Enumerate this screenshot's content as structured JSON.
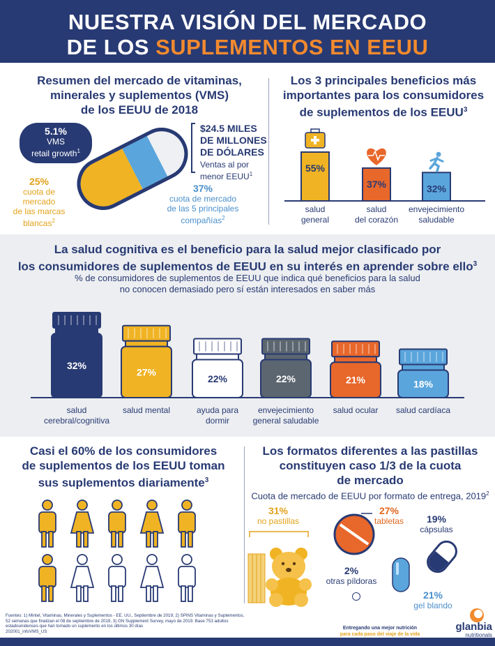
{
  "header": {
    "title_line1": "NUESTRA VISIÓN DEL MERCADO",
    "title_line2_prefix": "DE LOS ",
    "title_line2_accent": "SUPLEMENTOS EN EEUU"
  },
  "vms": {
    "title_l1": "Resumen del mercado de vitaminas,",
    "title_l2": "minerales y suplementos (VMS)",
    "title_l3": "de los EEUU de 2018",
    "growth_value": "5.1%",
    "growth_l1": "VMS",
    "growth_l2": "retail growth",
    "growth_sup": "1",
    "total_l1": "$24.5 MILES",
    "total_l2": "DE MILLONES",
    "total_l3": "DE DÓLARES",
    "total_desc_l1": "Ventas al por",
    "total_desc_l2": "menor EEUU",
    "total_sup": "1",
    "private_value": "25%",
    "private_l1": "cuota de",
    "private_l2": "mercado",
    "private_l3": "de las marcas",
    "private_l4": "blancas",
    "private_sup": "2",
    "top5_value": "37%",
    "top5_l1": "cuota de mercado",
    "top5_l2": "de las 5 principales",
    "top5_l3": "compañías",
    "top5_sup": "2"
  },
  "benefits": {
    "title_l1": "Los 3 principales beneficios más",
    "title_l2": "importantes para los consumidores",
    "title_l3": "de suplementos de los EEUU",
    "title_sup": "3",
    "items": [
      {
        "value": "55%",
        "label_l1": "salud",
        "label_l2": "general",
        "icon": "first-aid-kit-icon",
        "color": "#f0b323"
      },
      {
        "value": "37%",
        "label_l1": "salud",
        "label_l2": "del corazón",
        "icon": "heart-icon",
        "color": "#e8672b"
      },
      {
        "value": "32%",
        "label_l1": "envejecimiento",
        "label_l2": "saludable",
        "icon": "runner-icon",
        "color": "#5aa5dc"
      }
    ]
  },
  "cognitive": {
    "title_l1": "La salud cognitiva es el beneficio para la salud mejor clasificado por",
    "title_l2": "los consumidores de suplementos de EEUU en su interés en aprender sobre ello",
    "title_sup": "3",
    "sub_l1": "% de consumidores de suplementos de EEUU que indica qué beneficios para la salud",
    "sub_l2": "no conocen demasiado pero sí están interesados en saber más",
    "bottles": [
      {
        "value": "32%",
        "label_l1": "salud",
        "label_l2": "cerebral/cognitiva",
        "color": "#283a73",
        "cap": "#283a73"
      },
      {
        "value": "27%",
        "label_l1": "salud mental",
        "label_l2": "",
        "color": "#f0b323",
        "cap": "#f0b323"
      },
      {
        "value": "22%",
        "label_l1": "ayuda para",
        "label_l2": "dormir",
        "color": "#ffffff",
        "cap": "#ffffff"
      },
      {
        "value": "22%",
        "label_l1": "envejecimiento",
        "label_l2": "general saludable",
        "color": "#5c6670",
        "cap": "#5c6670"
      },
      {
        "value": "21%",
        "label_l1": "salud ocular",
        "label_l2": "",
        "color": "#e8672b",
        "cap": "#e8672b"
      },
      {
        "value": "18%",
        "label_l1": "salud cardíaca",
        "label_l2": "",
        "color": "#5aa5dc",
        "cap": "#5aa5dc"
      }
    ]
  },
  "daily": {
    "title_l1": "Casi el 60% de los consumidores",
    "title_l2": "de suplementos de los EEUU toman",
    "title_l3": "sus suplementos diariamente",
    "title_sup": "3",
    "people_filled": 6,
    "people_total": 10
  },
  "formats": {
    "title_l1": "Los formatos diferentes a las pastillas",
    "title_l2": "constituyen caso 1/3 de la cuota",
    "title_l3": "de mercado",
    "sub": "Cuota de mercado de EEUU por formato de entrega, 2019",
    "sub_sup": "2",
    "nonpill_value": "31%",
    "nonpill_label": "no pastillas",
    "tablets_value": "27%",
    "tablets_label": "tabletas",
    "capsules_value": "19%",
    "capsules_label": "cápsulas",
    "other_value": "2%",
    "other_label": "otras píldoras",
    "softgel_value": "21%",
    "softgel_label": "gel blando"
  },
  "footer": {
    "sources_l1": "Fuentes: 1) Mintel, Vitaminas, Minerales y Suplementos - EE. UU., Septiembre de 2019; 2) SPINS Vitaminas y Suplementos,",
    "sources_l2": "52 semanas que finalizan el 08 de septiembre de 2019, 3) GN Supplement Survey, mayo de 2019. Base 753 adultos",
    "sources_l3": "estadounidenses que han tomado un suplemento en los últimos 30 días",
    "code": "202001_infoVMS_US",
    "tagline_l1": "Entregando una mejor nutrición",
    "tagline_l2": "para cada paso del viaje de la vida",
    "brand": "glanbia",
    "brand_sub": "nutritionals"
  }
}
